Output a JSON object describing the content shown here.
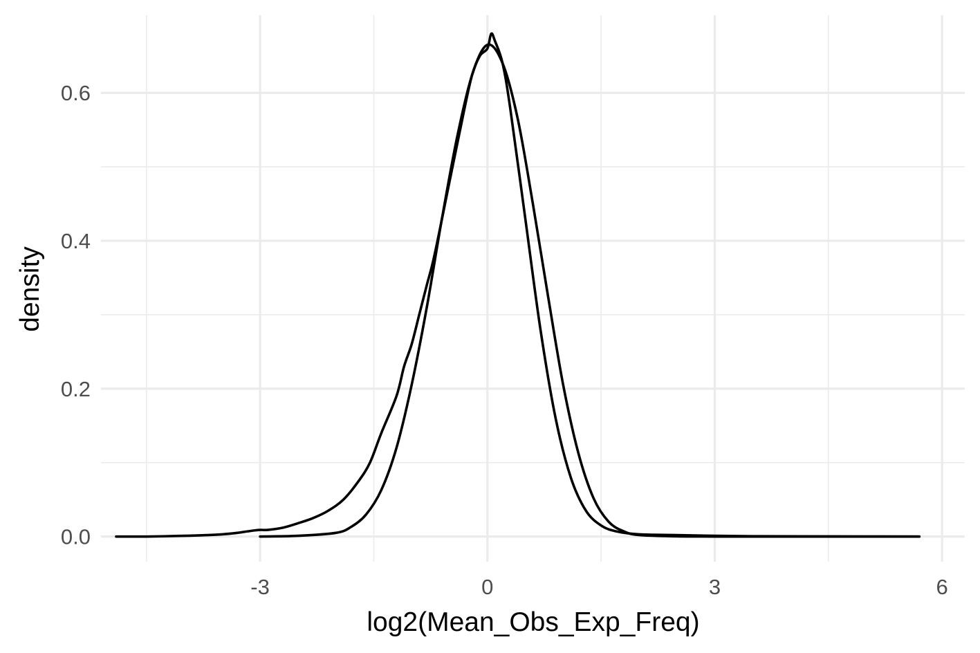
{
  "chart_data": {
    "type": "line",
    "title": "",
    "xlabel": "log2(Mean_Obs_Exp_Freq)",
    "ylabel": "density",
    "xlim": [
      -5.1,
      6.3
    ],
    "ylim": [
      -0.034,
      0.705
    ],
    "x_ticks": [
      -3,
      0,
      3,
      6
    ],
    "x_tick_labels": [
      "-3",
      "0",
      "3",
      "6"
    ],
    "y_ticks": [
      0.0,
      0.2,
      0.4,
      0.6
    ],
    "y_tick_labels": [
      "0.0",
      "0.2",
      "0.4",
      "0.6"
    ],
    "grid": true,
    "legend": "none",
    "colors": {
      "line": "#000000",
      "grid": "#ebebeb",
      "background": "#ffffff"
    },
    "series": [
      {
        "x": [
          -4.9,
          -4.5,
          -4.0,
          -3.7,
          -3.5,
          -3.3,
          -3.1,
          -3.0,
          -2.9,
          -2.7,
          -2.5,
          -2.3,
          -2.1,
          -1.9,
          -1.7,
          -1.55,
          -1.4,
          -1.2,
          -1.1,
          -1.0,
          -0.9,
          -0.8,
          -0.7,
          -0.5,
          -0.3,
          -0.2,
          -0.1,
          0.0,
          0.05,
          0.1,
          0.2,
          0.3,
          0.5,
          0.7,
          0.9,
          1.1,
          1.3,
          1.5,
          1.7,
          2.0,
          2.5,
          3.0,
          3.5,
          4.0,
          5.0,
          5.7
        ],
        "y": [
          0.0,
          0.0,
          0.001,
          0.002,
          0.003,
          0.005,
          0.008,
          0.009,
          0.009,
          0.012,
          0.018,
          0.025,
          0.035,
          0.05,
          0.075,
          0.1,
          0.14,
          0.19,
          0.23,
          0.26,
          0.3,
          0.34,
          0.38,
          0.48,
          0.58,
          0.625,
          0.65,
          0.66,
          0.68,
          0.67,
          0.64,
          0.58,
          0.43,
          0.28,
          0.16,
          0.08,
          0.035,
          0.015,
          0.007,
          0.003,
          0.002,
          0.001,
          0.0005,
          0.0003,
          0.0001,
          0.0
        ]
      },
      {
        "x": [
          -3.0,
          -2.5,
          -2.0,
          -1.8,
          -1.6,
          -1.4,
          -1.2,
          -1.0,
          -0.8,
          -0.6,
          -0.4,
          -0.2,
          0.0,
          0.2,
          0.4,
          0.6,
          0.8,
          1.0,
          1.2,
          1.4,
          1.6,
          1.8,
          2.0,
          2.5,
          3.0,
          4.0,
          5.0,
          5.7
        ],
        "y": [
          0.0,
          0.001,
          0.005,
          0.013,
          0.03,
          0.063,
          0.12,
          0.205,
          0.31,
          0.43,
          0.54,
          0.625,
          0.665,
          0.64,
          0.565,
          0.45,
          0.325,
          0.205,
          0.113,
          0.052,
          0.02,
          0.007,
          0.002,
          0.0003,
          0.0,
          0.0,
          0.0,
          0.0
        ]
      }
    ]
  }
}
